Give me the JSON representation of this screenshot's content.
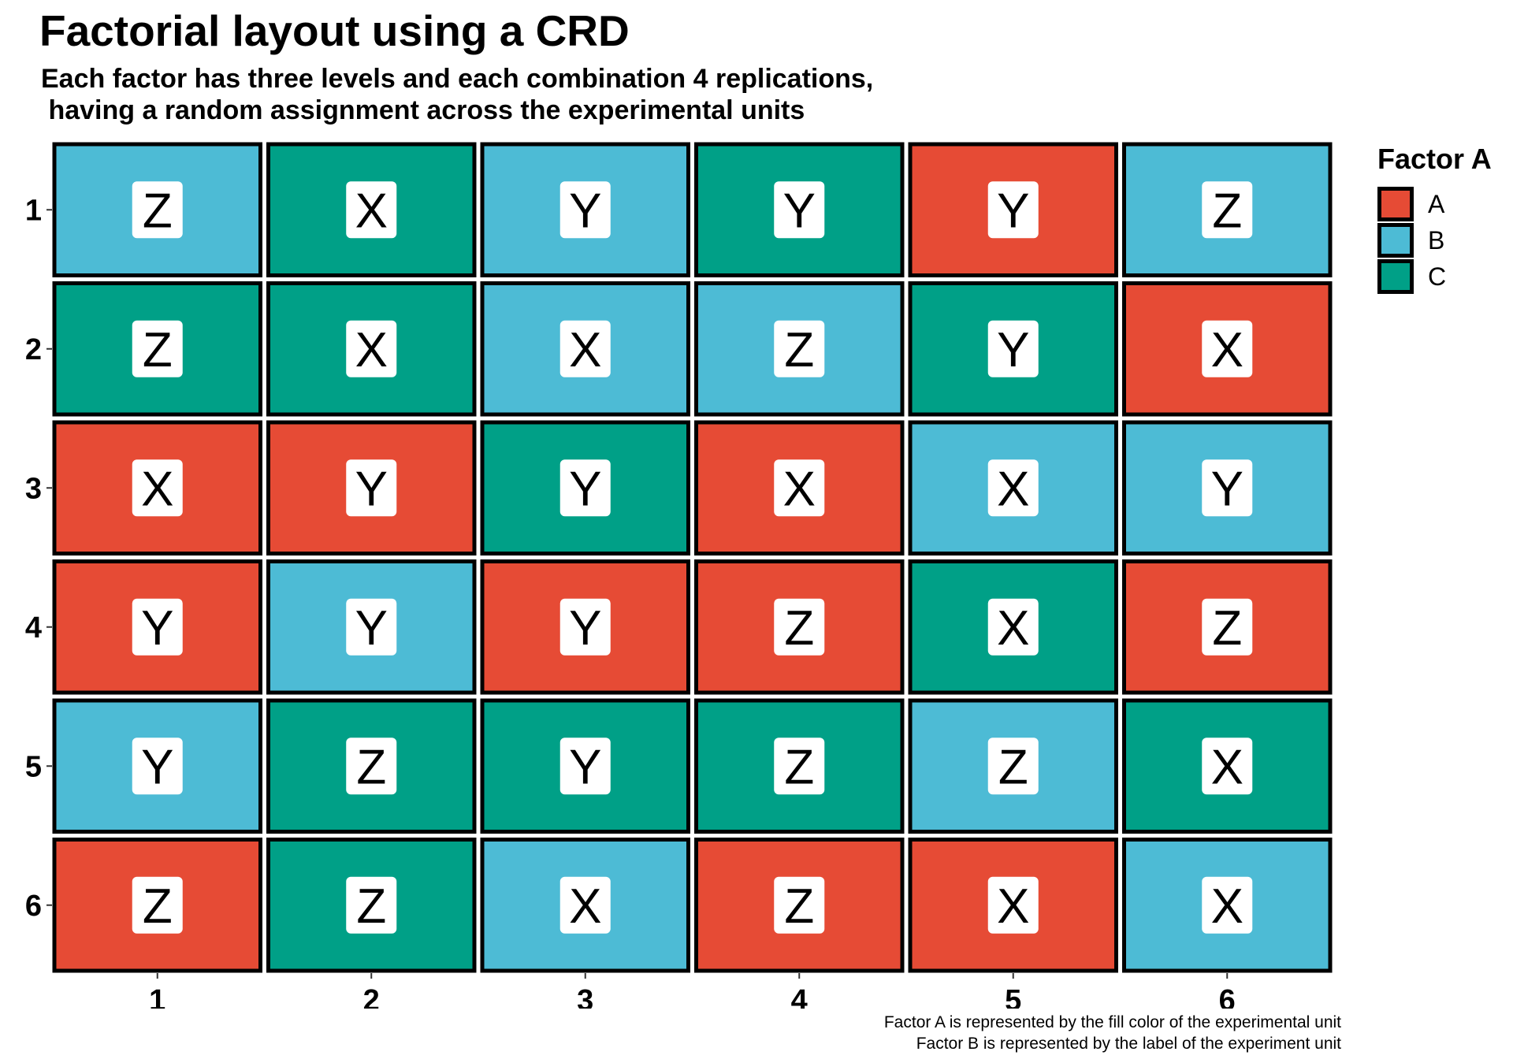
{
  "title": "Factorial layout using a CRD",
  "subtitle": "Each factor has three levels and each combination 4 replications,\n having a random assignment across the experimental units",
  "legend": {
    "title": "Factor A",
    "items": [
      {
        "label": "A",
        "color": "#E64B35"
      },
      {
        "label": "B",
        "color": "#4DBBD5"
      },
      {
        "label": "C",
        "color": "#00A087"
      }
    ]
  },
  "caption": {
    "line1": "Factor A is represented by the fill color of the experimental unit",
    "line2": "Factor B is represented by the label of the experiment unit"
  },
  "chart_data": {
    "type": "heatmap",
    "title": "Factorial layout using a CRD",
    "subtitle": "Each factor has three levels and each combination 4 replications,\n having a random assignment across the experimental units",
    "x_ticks": [
      "1",
      "2",
      "3",
      "4",
      "5",
      "6"
    ],
    "y_ticks": [
      "1",
      "2",
      "3",
      "4",
      "5",
      "6"
    ],
    "y_reversed": true,
    "grid": false,
    "legend_position": "right",
    "colors": {
      "A": "#E64B35",
      "B": "#4DBBD5",
      "C": "#00A087"
    },
    "cells": [
      {
        "row": 1,
        "col": 1,
        "factor_a": "B",
        "factor_b": "Z"
      },
      {
        "row": 1,
        "col": 2,
        "factor_a": "C",
        "factor_b": "X"
      },
      {
        "row": 1,
        "col": 3,
        "factor_a": "B",
        "factor_b": "Y"
      },
      {
        "row": 1,
        "col": 4,
        "factor_a": "C",
        "factor_b": "Y"
      },
      {
        "row": 1,
        "col": 5,
        "factor_a": "A",
        "factor_b": "Y"
      },
      {
        "row": 1,
        "col": 6,
        "factor_a": "B",
        "factor_b": "Z"
      },
      {
        "row": 2,
        "col": 1,
        "factor_a": "C",
        "factor_b": "Z"
      },
      {
        "row": 2,
        "col": 2,
        "factor_a": "C",
        "factor_b": "X"
      },
      {
        "row": 2,
        "col": 3,
        "factor_a": "B",
        "factor_b": "X"
      },
      {
        "row": 2,
        "col": 4,
        "factor_a": "B",
        "factor_b": "Z"
      },
      {
        "row": 2,
        "col": 5,
        "factor_a": "C",
        "factor_b": "Y"
      },
      {
        "row": 2,
        "col": 6,
        "factor_a": "A",
        "factor_b": "X"
      },
      {
        "row": 3,
        "col": 1,
        "factor_a": "A",
        "factor_b": "X"
      },
      {
        "row": 3,
        "col": 2,
        "factor_a": "A",
        "factor_b": "Y"
      },
      {
        "row": 3,
        "col": 3,
        "factor_a": "C",
        "factor_b": "Y"
      },
      {
        "row": 3,
        "col": 4,
        "factor_a": "A",
        "factor_b": "X"
      },
      {
        "row": 3,
        "col": 5,
        "factor_a": "B",
        "factor_b": "X"
      },
      {
        "row": 3,
        "col": 6,
        "factor_a": "B",
        "factor_b": "Y"
      },
      {
        "row": 4,
        "col": 1,
        "factor_a": "A",
        "factor_b": "Y"
      },
      {
        "row": 4,
        "col": 2,
        "factor_a": "B",
        "factor_b": "Y"
      },
      {
        "row": 4,
        "col": 3,
        "factor_a": "A",
        "factor_b": "Y"
      },
      {
        "row": 4,
        "col": 4,
        "factor_a": "A",
        "factor_b": "Z"
      },
      {
        "row": 4,
        "col": 5,
        "factor_a": "C",
        "factor_b": "X"
      },
      {
        "row": 4,
        "col": 6,
        "factor_a": "A",
        "factor_b": "Z"
      },
      {
        "row": 5,
        "col": 1,
        "factor_a": "B",
        "factor_b": "Y"
      },
      {
        "row": 5,
        "col": 2,
        "factor_a": "C",
        "factor_b": "Z"
      },
      {
        "row": 5,
        "col": 3,
        "factor_a": "C",
        "factor_b": "Y"
      },
      {
        "row": 5,
        "col": 4,
        "factor_a": "C",
        "factor_b": "Z"
      },
      {
        "row": 5,
        "col": 5,
        "factor_a": "B",
        "factor_b": "Z"
      },
      {
        "row": 5,
        "col": 6,
        "factor_a": "C",
        "factor_b": "X"
      },
      {
        "row": 6,
        "col": 1,
        "factor_a": "A",
        "factor_b": "Z"
      },
      {
        "row": 6,
        "col": 2,
        "factor_a": "C",
        "factor_b": "Z"
      },
      {
        "row": 6,
        "col": 3,
        "factor_a": "B",
        "factor_b": "X"
      },
      {
        "row": 6,
        "col": 4,
        "factor_a": "A",
        "factor_b": "Z"
      },
      {
        "row": 6,
        "col": 5,
        "factor_a": "A",
        "factor_b": "X"
      },
      {
        "row": 6,
        "col": 6,
        "factor_a": "B",
        "factor_b": "X"
      }
    ]
  }
}
